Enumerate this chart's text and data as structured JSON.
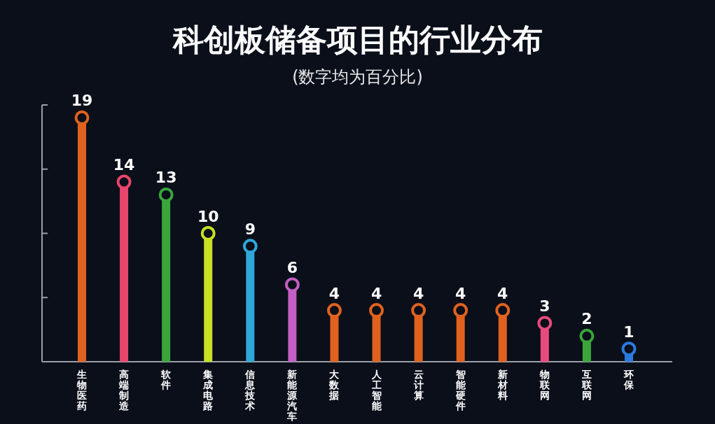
{
  "chart_data": {
    "type": "lollipop",
    "title": "科创板储备项目的行业分布",
    "subtitle": "(数字均为百分比)",
    "categories": [
      "生物医药",
      "高端制造",
      "软件",
      "集成电路",
      "信息技术",
      "新能源汽车",
      "大数据",
      "人工智能",
      "云计算",
      "智能硬件",
      "新材料",
      "物联网",
      "互联网",
      "环保"
    ],
    "values": [
      19,
      14,
      13,
      10,
      9,
      6,
      4,
      4,
      4,
      4,
      4,
      3,
      2,
      1
    ],
    "colors": [
      "#e0621e",
      "#e8466c",
      "#3aa63a",
      "#c8e022",
      "#2ea8da",
      "#c45ec4",
      "#e0621e",
      "#e0621e",
      "#e0621e",
      "#e0621e",
      "#e0621e",
      "#e84a7c",
      "#3aa63a",
      "#2a7ae0"
    ],
    "ylim": [
      0,
      20
    ],
    "yticks": [
      {
        "value": 5,
        "label": null
      },
      {
        "value": 10,
        "label": null
      },
      {
        "value": 15,
        "label": null
      },
      {
        "value": 20,
        "label": null
      }
    ],
    "data_labels": true
  }
}
